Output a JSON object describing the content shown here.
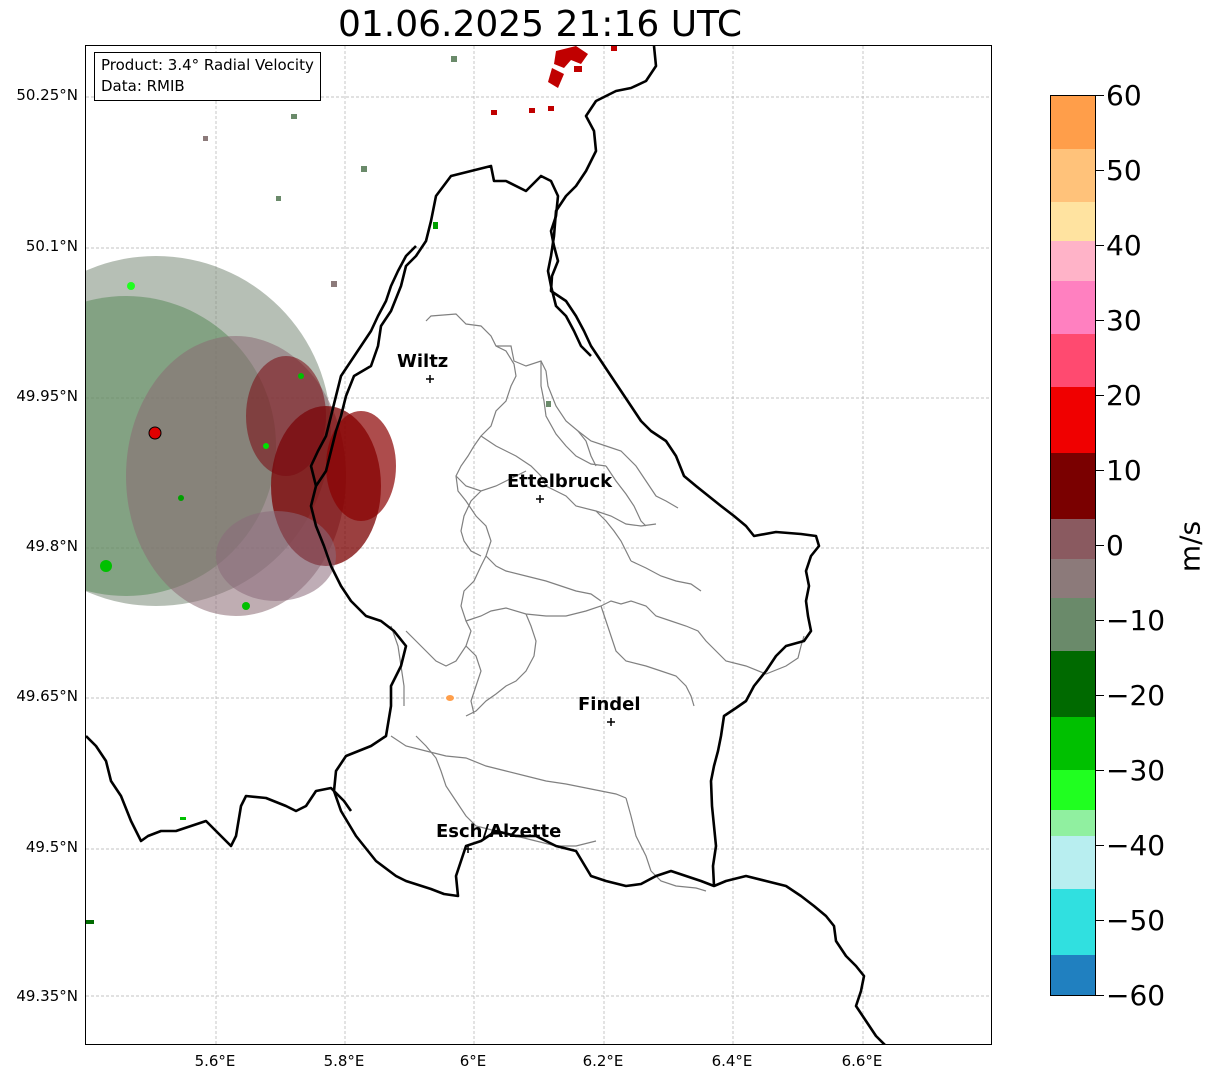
{
  "title": "01.06.2025 21:16 UTC",
  "info_box": {
    "product": "Product: 3.4° Radial Velocity",
    "data": "Data: RMIB"
  },
  "lat_ticks": [
    "50.25°N",
    "50.1°N",
    "49.95°N",
    "49.8°N",
    "49.65°N",
    "49.5°N",
    "49.35°N"
  ],
  "lon_ticks": [
    "5.6°E",
    "5.8°E",
    "6°E",
    "6.2°E",
    "6.4°E",
    "6.6°E"
  ],
  "cities": [
    {
      "name": "Wiltz"
    },
    {
      "name": "Ettelbruck"
    },
    {
      "name": "Findel"
    },
    {
      "name": "Esch/Alzette"
    }
  ],
  "colorbar": {
    "unit": "m/s",
    "tick_labels": [
      "60",
      "50",
      "40",
      "30",
      "20",
      "10",
      "0",
      "−10",
      "−20",
      "−30",
      "−40",
      "−50",
      "−60"
    ],
    "range": [
      -60,
      60
    ],
    "colors": {
      "orange_high": "#ff9e4a",
      "orange_light": "#ffc27a",
      "yellow_light": "#ffe3a0",
      "pink_light": "#ffb3c8",
      "pink": "#ff80c0",
      "pink_red": "#ff4a70",
      "red": "#f00000",
      "dark_red": "#7a0000",
      "brown_gray": "#8a5a60",
      "gray": "#8c7a7a",
      "gray_green": "#6a8a6a",
      "dark_green": "#006a00",
      "green": "#00c000",
      "bright_green": "#20ff20",
      "light_green": "#90f0a0",
      "light_cyan": "#b8eef0",
      "cyan": "#30e0e0",
      "blue": "#2080c0"
    }
  },
  "map_colors": {
    "country_border": "#000000",
    "canton_border": "#808080",
    "grid": "#b0b0b0",
    "radar_site": "#e00000"
  }
}
